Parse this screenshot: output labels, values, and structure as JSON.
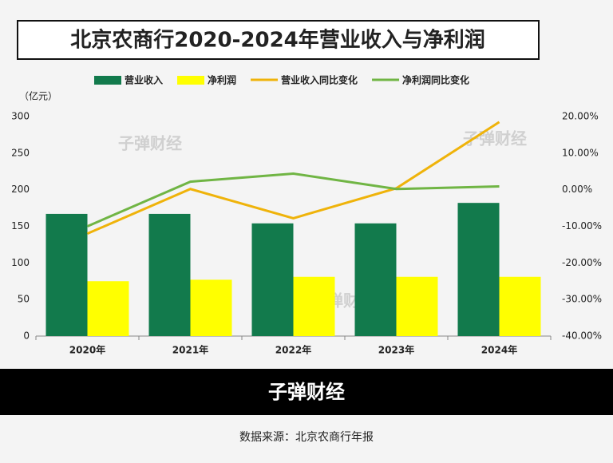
{
  "chart_data": {
    "type": "bar",
    "title": "北京农商行2020-2024年营业收入与净利润",
    "y_unit": "（亿元）",
    "categories": [
      "2020年",
      "2021年",
      "2022年",
      "2023年",
      "2024年"
    ],
    "series": [
      {
        "name": "营业收入",
        "type": "bar",
        "color": "#127a4c",
        "values": [
          167,
          167,
          154,
          154,
          182
        ]
      },
      {
        "name": "净利润",
        "type": "bar",
        "color": "#ffff00",
        "values": [
          75,
          77,
          81,
          81,
          81
        ]
      },
      {
        "name": "营业收入同比变化",
        "type": "line",
        "axis": "y2",
        "color": "#efb30a",
        "values": [
          -12,
          0.2,
          -7.8,
          0.4,
          18.5
        ]
      },
      {
        "name": "净利润同比变化",
        "type": "line",
        "axis": "y2",
        "color": "#70b544",
        "values": [
          -10,
          2.2,
          4.4,
          0.2,
          0.9
        ]
      }
    ],
    "ylim": [
      0,
      300
    ],
    "yticks": [
      0,
      50,
      100,
      150,
      200,
      250,
      300
    ],
    "y2lim": [
      -40,
      20
    ],
    "y2ticks": [
      {
        "value": -40,
        "label": "-40.00%"
      },
      {
        "value": -30,
        "label": "-30.00%"
      },
      {
        "value": -20,
        "label": "-20.00%"
      },
      {
        "value": -10,
        "label": "-10.00%"
      },
      {
        "value": 0,
        "label": "0.00%"
      },
      {
        "value": 10,
        "label": "10.00%"
      },
      {
        "value": 20,
        "label": "20.00%"
      }
    ],
    "grid": false,
    "legend": "top",
    "watermark": "子弹财经",
    "footer": {
      "brand": "子弹财经",
      "source": "数据来源：北京农商行年报"
    }
  }
}
